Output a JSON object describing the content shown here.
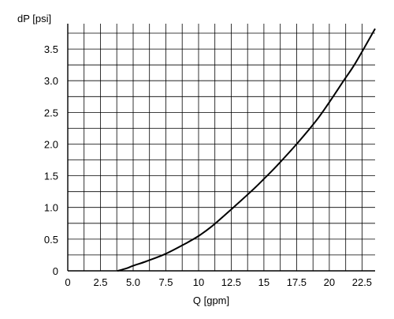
{
  "chart_data": {
    "type": "line",
    "title": "",
    "xlabel": "Q [gpm]",
    "ylabel": "dP [psi]",
    "xlim": [
      0,
      23.5
    ],
    "ylim": [
      0,
      3.9
    ],
    "x_ticks": [
      0,
      2.5,
      5.0,
      7.5,
      10,
      12.5,
      15,
      17.5,
      20,
      22.5
    ],
    "x_tick_labels": [
      "0",
      "2.5",
      "5.0",
      "7.5",
      "10",
      "12.5",
      "15",
      "17.5",
      "20",
      "22.5"
    ],
    "y_ticks": [
      0,
      0.5,
      1.0,
      1.5,
      2.0,
      2.5,
      3.0,
      3.5
    ],
    "y_tick_labels": [
      "0",
      "0.5",
      "1.0",
      "1.5",
      "2.0",
      "2.5",
      "3.0",
      "3.5"
    ],
    "x_grid_step": 1.25,
    "y_grid_step": 0.25,
    "grid": true,
    "series": [
      {
        "x": [
          3.8,
          4.5,
          5.0,
          6.0,
          7.5,
          9.0,
          10.0,
          11.0,
          12.5,
          14.0,
          15.0,
          16.0,
          17.5,
          19.0,
          20.0,
          21.0,
          22.0,
          23.5
        ],
        "y": [
          0,
          0.04,
          0.08,
          0.15,
          0.27,
          0.43,
          0.55,
          0.7,
          0.97,
          1.25,
          1.45,
          1.66,
          2.0,
          2.37,
          2.66,
          2.97,
          3.28,
          3.82
        ]
      }
    ]
  },
  "colors": {
    "line": "#000000",
    "grid": "#000000",
    "background": "#ffffff"
  }
}
